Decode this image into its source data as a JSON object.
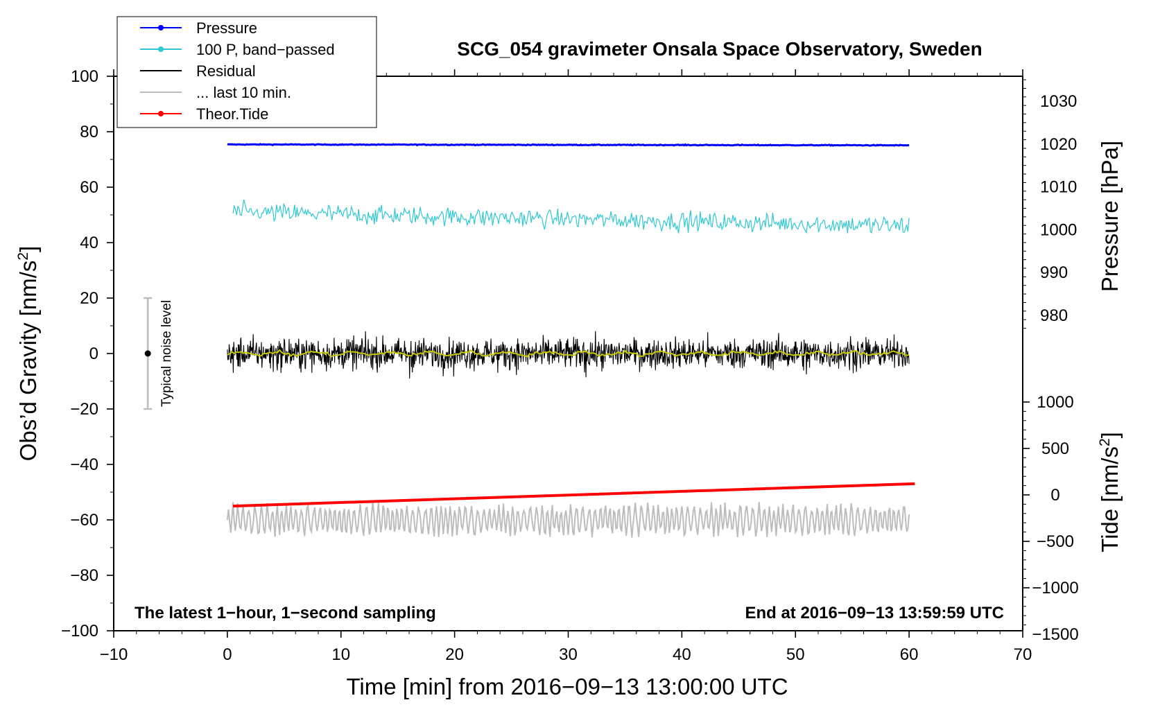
{
  "chart_data": {
    "type": "line",
    "title": "SCG_054 gravimeter Onsala Space Observatory, Sweden",
    "xlabel": "Time [min] from 2016−09−13 13:00:00 UTC",
    "ylabel_left": "Obs’d Gravity [nm/s",
    "ylabel_left_sup": "2",
    "ylabel_left_close": "]",
    "ylabel_right_pressure": "Pressure [hPa]",
    "ylabel_right_tide": "Tide [nm/s",
    "ylabel_right_tide_sup": "2",
    "ylabel_right_tide_close": "]",
    "xlim": [
      -10,
      70
    ],
    "ylim": [
      -100,
      100
    ],
    "pressure_axis_range": [
      970,
      1035
    ],
    "tide_axis_range": [
      -1500,
      1000
    ],
    "x_ticks": [
      "−10",
      "0",
      "10",
      "20",
      "30",
      "40",
      "50",
      "60",
      "70"
    ],
    "y_ticks": [
      "100",
      "80",
      "60",
      "40",
      "20",
      "0",
      "−20",
      "−40",
      "−60",
      "−80",
      "−100"
    ],
    "pressure_ticks": [
      "1030",
      "1020",
      "1010",
      "1000",
      "990",
      "980"
    ],
    "tide_ticks": [
      "1000",
      "500",
      "0",
      "−500",
      "−1000",
      "−1500"
    ],
    "annotation_left": "The latest 1−hour, 1−second sampling",
    "annotation_right": "End at 2016−09−13 13:59:59 UTC",
    "noise_bar": {
      "label": "Typical noise level",
      "x": -7,
      "center": 0,
      "low": -20,
      "high": 20
    },
    "legend": {
      "placement": "top-left",
      "entries": [
        {
          "label": "Pressure",
          "color": "#0000ff",
          "marker": true
        },
        {
          "label": "100 P, band−passed",
          "color": "#2ec8d2",
          "marker": true
        },
        {
          "label": "Residual",
          "color": "#000000",
          "marker": false
        },
        {
          "label": "... last 10 min.",
          "color": "#bdbdbd",
          "marker": false
        },
        {
          "label": "Theor.Tide",
          "color": "#ff0000",
          "marker": true
        }
      ]
    },
    "series": [
      {
        "name": "Pressure",
        "color": "#0000ff",
        "axis": "pressure",
        "x_range": [
          0,
          60
        ],
        "start": 1019.9,
        "end": 1019.7,
        "noise": 0.12
      },
      {
        "name": "100 P, band−passed",
        "color": "#2ec8d2",
        "axis": "gravity",
        "x_range": [
          0.5,
          60
        ],
        "start": 51,
        "end": 46,
        "amplitude": 3
      },
      {
        "name": "Residual",
        "color": "#000000",
        "axis": "gravity",
        "x_range": [
          0,
          60
        ],
        "center": 0,
        "amplitude": 5
      },
      {
        "name": "Residual (smoothed)",
        "color": "#c8c800",
        "axis": "gravity",
        "x_range": [
          0,
          60
        ],
        "center": 0,
        "amplitude": 0.8
      },
      {
        "name": "... last 10 min.",
        "color": "#bdbdbd",
        "axis": "gravity",
        "x_range": [
          0,
          60
        ],
        "center": -60,
        "amplitude": 5
      },
      {
        "name": "Theor.Tide",
        "color": "#ff0000",
        "axis": "tide",
        "x_range": [
          0.5,
          60.5
        ],
        "start": -120,
        "end": 120
      }
    ]
  }
}
